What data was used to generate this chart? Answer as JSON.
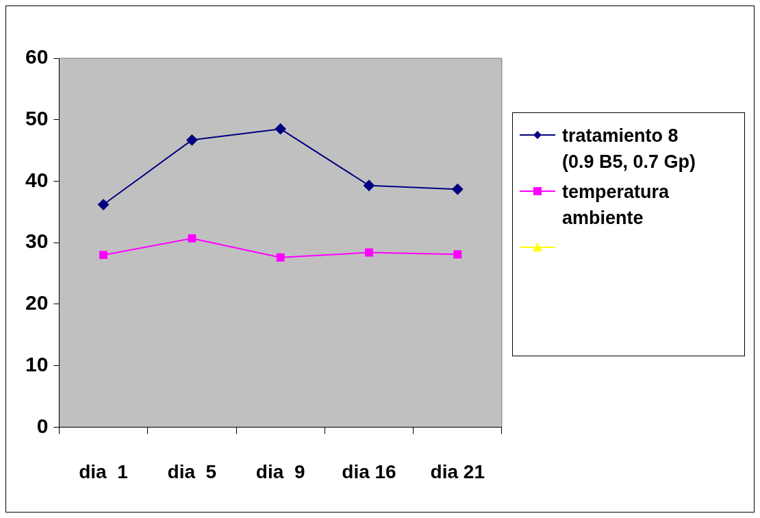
{
  "chart_data": {
    "type": "line",
    "categories": [
      "dia  1",
      "dia  5",
      "dia  9",
      "dia 16",
      "dia 21"
    ],
    "series": [
      {
        "name": "tratamiento 8 (0.9 B5, 0.7 Gp)",
        "color": "#000080",
        "marker": "diamond",
        "values": [
          36.2,
          46.7,
          48.5,
          39.3,
          38.7
        ]
      },
      {
        "name": "temperatura ambiente",
        "color": "#ff00ff",
        "marker": "square",
        "values": [
          28.0,
          30.7,
          27.6,
          28.4,
          28.1
        ]
      },
      {
        "color": "#ffff00",
        "marker": "triangle",
        "values": [
          null,
          null,
          null,
          null,
          null
        ]
      }
    ],
    "ylim": [
      0,
      60
    ],
    "yticks": [
      0,
      10,
      20,
      30,
      40,
      50,
      60
    ],
    "legend": "right",
    "line_style": "solid"
  }
}
